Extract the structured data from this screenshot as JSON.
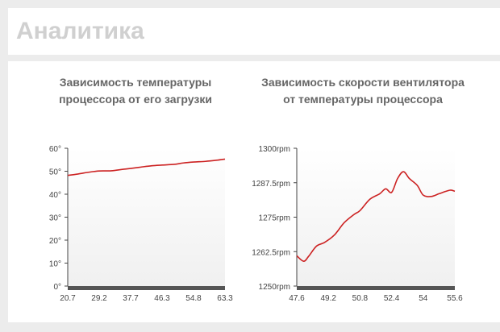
{
  "header": {
    "title": "Аналитика"
  },
  "chart_data": [
    {
      "type": "line",
      "title": "Зависимость температуры процессора от его загрузки",
      "x_ticks": [
        "20.7",
        "29.2",
        "37.7",
        "46.3",
        "54.8",
        "63.3"
      ],
      "y_ticks": [
        "0°",
        "10°",
        "20°",
        "30°",
        "40°",
        "50°",
        "60°"
      ],
      "xlim": [
        20.7,
        63.3
      ],
      "ylim": [
        0,
        60
      ],
      "series": [
        {
          "color": "#cc2222",
          "x": [
            20.7,
            23.5,
            26.5,
            29.2,
            32.5,
            35.5,
            37.7,
            40.5,
            43.5,
            46.3,
            49.5,
            52.0,
            54.8,
            58.0,
            61.0,
            63.3
          ],
          "y": [
            48.2,
            48.8,
            49.6,
            50.1,
            50.2,
            50.8,
            51.2,
            51.8,
            52.4,
            52.7,
            53.0,
            53.6,
            54.0,
            54.3,
            54.8,
            55.3
          ]
        }
      ]
    },
    {
      "type": "line",
      "title": "Зависимость скорости вентилятора от температуры процессора",
      "x_ticks": [
        "47.6",
        "49.2",
        "50.8",
        "52.4",
        "54",
        "55.6"
      ],
      "y_ticks": [
        "1250rpm",
        "1262.5rpm",
        "1275rpm",
        "1287.5rpm",
        "1300rpm"
      ],
      "xlim": [
        47.6,
        55.6
      ],
      "ylim": [
        1250,
        1300
      ],
      "series": [
        {
          "color": "#cc2222",
          "x": [
            47.6,
            47.95,
            48.2,
            48.6,
            49.0,
            49.5,
            50.0,
            50.5,
            50.8,
            51.3,
            51.8,
            52.1,
            52.4,
            52.7,
            53.0,
            53.3,
            53.7,
            54.0,
            54.4,
            54.8,
            55.2,
            55.4,
            55.6
          ],
          "y": [
            1261.0,
            1259.0,
            1260.8,
            1264.5,
            1265.8,
            1268.5,
            1273.0,
            1276.0,
            1277.4,
            1281.5,
            1283.5,
            1285.3,
            1284.0,
            1289.0,
            1291.5,
            1289.0,
            1286.5,
            1283.0,
            1282.5,
            1283.5,
            1284.5,
            1284.8,
            1284.4
          ]
        }
      ]
    }
  ]
}
